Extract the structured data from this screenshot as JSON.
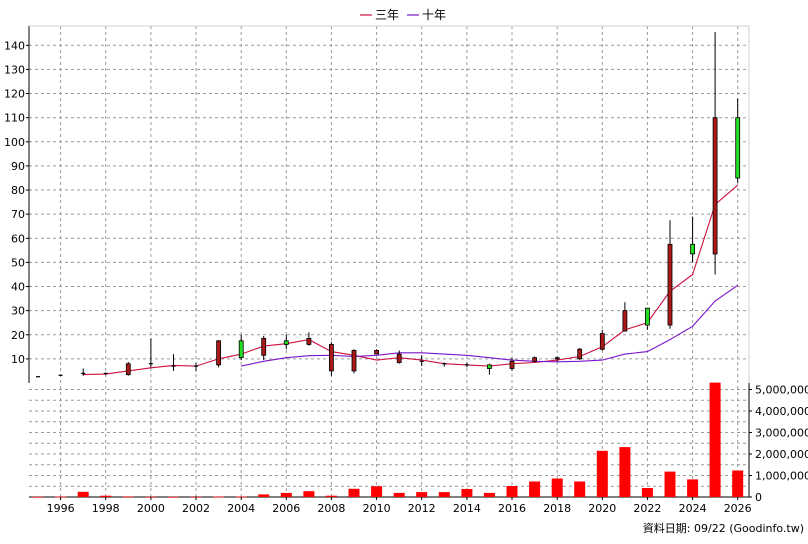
{
  "chart_data": {
    "type": "candlestick",
    "legend": {
      "placement": "top-center",
      "items": [
        {
          "label": "三年",
          "color": "#d01040"
        },
        {
          "label": "十年",
          "color": "#7a16cc"
        }
      ]
    },
    "credit": "資料日期: 09/22 (Goodinfo.tw)",
    "price_axis": {
      "side": "left",
      "ylim": [
        0,
        148
      ],
      "ticks": [
        10,
        20,
        30,
        40,
        50,
        60,
        70,
        80,
        90,
        100,
        110,
        120,
        130,
        140
      ],
      "grid": true
    },
    "volume_axis": {
      "side": "right",
      "ylim": [
        0,
        5300000
      ],
      "ticks": [
        0,
        1000000,
        2000000,
        3000000,
        4000000,
        5000000
      ],
      "tick_labels": [
        "0",
        "1,000,000",
        "2,000,000",
        "3,000,000",
        "4,000,000",
        "5,000,000"
      ],
      "grid": true
    },
    "x_axis": {
      "ticks": [
        1996,
        1998,
        2000,
        2002,
        2004,
        2006,
        2008,
        2010,
        2012,
        2014,
        2016,
        2018,
        2020,
        2022,
        2024,
        2026
      ],
      "xlim": [
        1994.6,
        2026.5
      ]
    },
    "candles": [
      {
        "year": 1995,
        "open": 2.6,
        "high": 2.8,
        "low": 2.4,
        "close": 2.6
      },
      {
        "year": 1996,
        "open": 3.2,
        "high": 3.4,
        "low": 3.0,
        "close": 3.2
      },
      {
        "year": 1997,
        "open": 4.0,
        "high": 6.0,
        "low": 3.0,
        "close": 4.0
      },
      {
        "year": 1998,
        "open": 4.0,
        "high": 4.3,
        "low": 3.3,
        "close": 4.0
      },
      {
        "year": 1999,
        "open": 8.0,
        "high": 8.7,
        "low": 3.0,
        "close": 3.5
      },
      {
        "year": 2000,
        "open": 8.0,
        "high": 18.5,
        "low": 6.5,
        "close": 8.0
      },
      {
        "year": 2001,
        "open": 7.0,
        "high": 12.0,
        "low": 5.0,
        "close": 7.0
      },
      {
        "year": 2002,
        "open": 7.0,
        "high": 8.3,
        "low": 4.8,
        "close": 7.0
      },
      {
        "year": 2003,
        "open": 17.5,
        "high": 17.8,
        "low": 6.5,
        "close": 7.5
      },
      {
        "year": 2004,
        "open": 10.5,
        "high": 20.0,
        "low": 9.5,
        "close": 17.5
      },
      {
        "year": 2005,
        "open": 18.5,
        "high": 19.5,
        "low": 9.5,
        "close": 11.5
      },
      {
        "year": 2006,
        "open": 16.0,
        "high": 20.0,
        "low": 14.0,
        "close": 17.5
      },
      {
        "year": 2007,
        "open": 18.5,
        "high": 21.0,
        "low": 15.5,
        "close": 16.0
      },
      {
        "year": 2008,
        "open": 16.0,
        "high": 17.0,
        "low": 3.0,
        "close": 5.0
      },
      {
        "year": 2009,
        "open": 13.5,
        "high": 14.0,
        "low": 4.0,
        "close": 5.0
      },
      {
        "year": 2010,
        "open": 13.5,
        "high": 14.0,
        "low": 12.0,
        "close": 12.0
      },
      {
        "year": 2011,
        "open": 12.0,
        "high": 13.5,
        "low": 8.0,
        "close": 8.5
      },
      {
        "year": 2012,
        "open": 9.0,
        "high": 11.5,
        "low": 7.0,
        "close": 9.0
      },
      {
        "year": 2013,
        "open": 8.0,
        "high": 8.5,
        "low": 6.8,
        "close": 8.0
      },
      {
        "year": 2014,
        "open": 7.5,
        "high": 8.5,
        "low": 6.5,
        "close": 7.5
      },
      {
        "year": 2015,
        "open": 6.0,
        "high": 8.0,
        "low": 3.5,
        "close": 7.5
      },
      {
        "year": 2016,
        "open": 9.0,
        "high": 10.5,
        "low": 5.0,
        "close": 6.0
      },
      {
        "year": 2017,
        "open": 10.5,
        "high": 11.0,
        "low": 8.5,
        "close": 9.0
      },
      {
        "year": 2018,
        "open": 10.5,
        "high": 11.0,
        "low": 9.0,
        "close": 10.0
      },
      {
        "year": 2019,
        "open": 14.0,
        "high": 14.5,
        "low": 9.5,
        "close": 10.0
      },
      {
        "year": 2020,
        "open": 20.5,
        "high": 22.0,
        "low": 13.5,
        "close": 14.0
      },
      {
        "year": 2021,
        "open": 30.0,
        "high": 33.5,
        "low": 21.5,
        "close": 21.5
      },
      {
        "year": 2022,
        "open": 24.0,
        "high": 31.0,
        "low": 22.0,
        "close": 31.0
      },
      {
        "year": 2023,
        "open": 57.5,
        "high": 67.5,
        "low": 22.5,
        "close": 24.0
      },
      {
        "year": 2024,
        "open": 53.5,
        "high": 69.0,
        "low": 50.0,
        "close": 57.5
      },
      {
        "year": 2025,
        "open": 110.0,
        "high": 145.5,
        "low": 45.0,
        "close": 53.5
      },
      {
        "year": 2026,
        "open": 85.0,
        "high": 118.0,
        "low": 83.0,
        "close": 110.0
      }
    ],
    "series": [
      {
        "name": "三年",
        "color": "#d01040",
        "x": [
          1997,
          1998,
          1999,
          2000,
          2001,
          2002,
          2003,
          2004,
          2005,
          2006,
          2007,
          2008,
          2009,
          2010,
          2011,
          2012,
          2013,
          2014,
          2015,
          2016,
          2017,
          2018,
          2019,
          2020,
          2021,
          2022,
          2023,
          2024,
          2025,
          2026
        ],
        "values": [
          3.5,
          3.7,
          5.0,
          6.3,
          7.3,
          7.0,
          10.0,
          12.0,
          15.3,
          16.3,
          18.0,
          13.0,
          11.5,
          9.5,
          10.5,
          9.5,
          8.0,
          7.5,
          7.0,
          8.0,
          8.5,
          9.5,
          11.0,
          15.0,
          22.0,
          25.0,
          38.0,
          45.0,
          74.0,
          82.0
        ]
      },
      {
        "name": "十年",
        "color": "#7a16cc",
        "x": [
          2004,
          2005,
          2006,
          2007,
          2008,
          2009,
          2010,
          2011,
          2012,
          2013,
          2014,
          2015,
          2016,
          2017,
          2018,
          2019,
          2020,
          2021,
          2022,
          2023,
          2024,
          2025,
          2026
        ],
        "values": [
          7.0,
          9.0,
          10.5,
          11.3,
          11.5,
          11.0,
          11.5,
          12.5,
          12.5,
          12.0,
          11.5,
          10.5,
          9.5,
          9.0,
          8.8,
          9.0,
          9.5,
          12.0,
          13.0,
          18.0,
          23.5,
          34.0,
          40.5
        ]
      }
    ],
    "volume": {
      "color": "#ff0000",
      "x": [
        1995,
        1996,
        1997,
        1998,
        1999,
        2000,
        2001,
        2002,
        2003,
        2004,
        2005,
        2006,
        2007,
        2008,
        2009,
        2010,
        2011,
        2012,
        2013,
        2014,
        2015,
        2016,
        2017,
        2018,
        2019,
        2020,
        2021,
        2022,
        2023,
        2024,
        2025,
        2026
      ],
      "values": [
        10000,
        20000,
        240000,
        60000,
        30000,
        10000,
        10000,
        10000,
        20000,
        20000,
        120000,
        190000,
        270000,
        60000,
        380000,
        500000,
        190000,
        230000,
        230000,
        370000,
        190000,
        510000,
        720000,
        860000,
        720000,
        2150000,
        2320000,
        420000,
        1180000,
        820000,
        5320000,
        1230000
      ]
    }
  }
}
